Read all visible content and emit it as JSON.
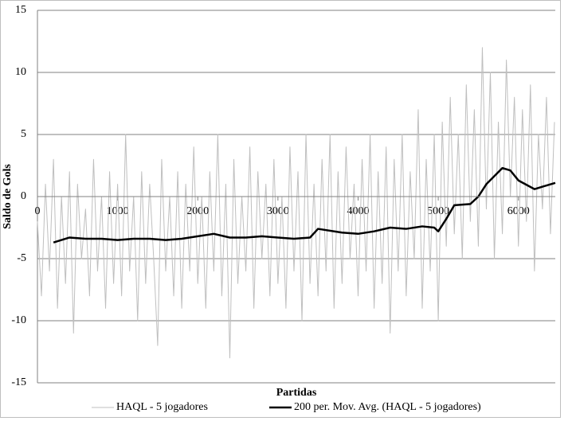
{
  "chart_data": {
    "type": "line",
    "y_label": "Saldo de Gols",
    "x_label": "Partidas",
    "xlim": [
      0,
      6460
    ],
    "ylim": [
      -15,
      15
    ],
    "xticks": [
      0,
      1000,
      2000,
      3000,
      4000,
      5000,
      6000
    ],
    "yticks": [
      -15,
      -10,
      -5,
      0,
      5,
      10,
      15
    ],
    "grid": true,
    "legend": "bottom",
    "series": [
      {
        "name": "HAQL - 5 jogadores",
        "color": "#bfbfbf",
        "width": 1,
        "x": [
          0,
          50,
          100,
          150,
          200,
          250,
          300,
          350,
          400,
          450,
          500,
          550,
          600,
          650,
          700,
          750,
          800,
          850,
          900,
          950,
          1000,
          1050,
          1100,
          1150,
          1200,
          1250,
          1300,
          1350,
          1400,
          1450,
          1500,
          1550,
          1600,
          1650,
          1700,
          1750,
          1800,
          1850,
          1900,
          1950,
          2000,
          2050,
          2100,
          2150,
          2200,
          2250,
          2300,
          2350,
          2400,
          2450,
          2500,
          2550,
          2600,
          2650,
          2700,
          2750,
          2800,
          2850,
          2900,
          2950,
          3000,
          3050,
          3100,
          3150,
          3200,
          3250,
          3300,
          3350,
          3400,
          3450,
          3500,
          3550,
          3600,
          3650,
          3700,
          3750,
          3800,
          3850,
          3900,
          3950,
          4000,
          4050,
          4100,
          4150,
          4200,
          4250,
          4300,
          4350,
          4400,
          4450,
          4500,
          4550,
          4600,
          4650,
          4700,
          4750,
          4800,
          4850,
          4900,
          4950,
          5000,
          5050,
          5100,
          5150,
          5200,
          5250,
          5300,
          5350,
          5400,
          5450,
          5500,
          5550,
          5600,
          5650,
          5700,
          5750,
          5800,
          5850,
          5900,
          5950,
          6000,
          6050,
          6100,
          6150,
          6200,
          6250,
          6300,
          6350,
          6400,
          6450
        ],
        "values": [
          -2,
          -8,
          1,
          -6,
          3,
          -9,
          0,
          -7,
          2,
          -11,
          1,
          -5,
          -1,
          -8,
          3,
          -6,
          0,
          -9,
          2,
          -7,
          1,
          -8,
          5,
          -6,
          0,
          -10,
          2,
          -7,
          1,
          -5,
          -12,
          3,
          -6,
          0,
          -8,
          2,
          -9,
          1,
          -6,
          4,
          -7,
          0,
          -9,
          2,
          -6,
          5,
          -8,
          1,
          -13,
          3,
          -7,
          0,
          -6,
          4,
          -9,
          2,
          -5,
          1,
          -8,
          3,
          -7,
          0,
          -9,
          4,
          -6,
          2,
          -10,
          5,
          -7,
          1,
          -8,
          3,
          -6,
          5,
          -9,
          2,
          -7,
          4,
          -5,
          1,
          -8,
          3,
          -6,
          5,
          -9,
          2,
          -7,
          4,
          -11,
          3,
          -6,
          5,
          -8,
          2,
          -5,
          7,
          -9,
          3,
          -6,
          5,
          -10,
          6,
          -4,
          8,
          -3,
          5,
          -5,
          9,
          -2,
          7,
          -4,
          12,
          -1,
          10,
          -5,
          6,
          -3,
          11,
          0,
          8,
          -4,
          7,
          -2,
          9,
          -6,
          5,
          -1,
          8,
          -3,
          6
        ]
      },
      {
        "name": "200 per. Mov. Avg. (HAQL - 5 jogadores)",
        "color": "#000000",
        "width": 2.5,
        "x": [
          200,
          400,
          600,
          800,
          1000,
          1200,
          1400,
          1600,
          1800,
          2000,
          2200,
          2400,
          2600,
          2800,
          3000,
          3200,
          3400,
          3500,
          3800,
          4000,
          4200,
          4400,
          4600,
          4800,
          4950,
          5000,
          5100,
          5200,
          5400,
          5500,
          5600,
          5800,
          5900,
          6000,
          6200,
          6300,
          6460
        ],
        "values": [
          -3.7,
          -3.3,
          -3.4,
          -3.4,
          -3.5,
          -3.4,
          -3.4,
          -3.5,
          -3.4,
          -3.2,
          -3.0,
          -3.3,
          -3.3,
          -3.2,
          -3.3,
          -3.4,
          -3.3,
          -2.6,
          -2.9,
          -3.0,
          -2.8,
          -2.5,
          -2.6,
          -2.4,
          -2.5,
          -2.8,
          -1.8,
          -0.7,
          -0.6,
          0.0,
          1.0,
          2.3,
          2.1,
          1.3,
          0.6,
          0.8,
          1.1
        ]
      }
    ]
  }
}
